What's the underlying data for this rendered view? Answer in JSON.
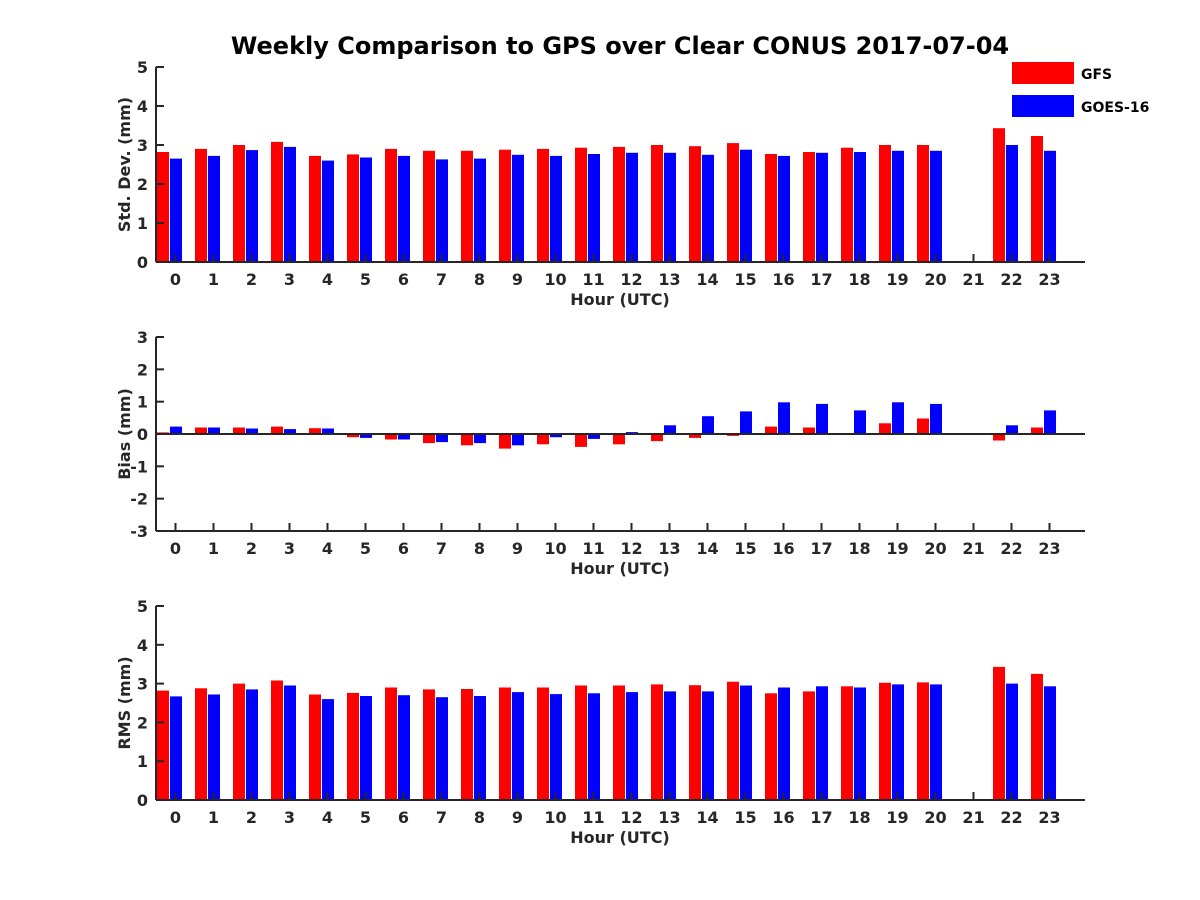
{
  "colors": {
    "gfs": "#ff0000",
    "goes": "#0000ff",
    "axis": "#262626"
  },
  "chart_data": {
    "title": "Weekly Comparison to GPS over Clear CONUS 2017-07-04",
    "legend": {
      "position": "top-right",
      "entries": [
        "GFS",
        "GOES-16"
      ]
    },
    "type": "bar",
    "categories": [
      "0",
      "1",
      "2",
      "3",
      "4",
      "5",
      "6",
      "7",
      "8",
      "9",
      "10",
      "11",
      "12",
      "13",
      "14",
      "15",
      "16",
      "17",
      "18",
      "19",
      "20",
      "21",
      "22",
      "23"
    ],
    "panels": [
      {
        "id": "std",
        "ylabel": "Std. Dev. (mm)",
        "xlabel": "Hour (UTC)",
        "ylim": [
          0,
          5
        ],
        "yticks": [
          "0",
          "1",
          "2",
          "3",
          "4",
          "5"
        ],
        "series": [
          {
            "name": "GFS",
            "values": [
              2.82,
              2.9,
              3.0,
              3.08,
              2.72,
              2.76,
              2.9,
              2.85,
              2.85,
              2.88,
              2.9,
              2.93,
              2.95,
              3.0,
              2.97,
              3.05,
              2.77,
              2.82,
              2.93,
              3.0,
              3.0,
              null,
              3.43,
              3.23
            ]
          },
          {
            "name": "GOES-16",
            "values": [
              2.65,
              2.72,
              2.87,
              2.95,
              2.6,
              2.68,
              2.72,
              2.63,
              2.65,
              2.75,
              2.72,
              2.77,
              2.8,
              2.8,
              2.75,
              2.88,
              2.72,
              2.8,
              2.82,
              2.85,
              2.85,
              null,
              3.0,
              2.85
            ]
          }
        ]
      },
      {
        "id": "bias",
        "ylabel": "Bias (mm)",
        "xlabel": "Hour (UTC)",
        "ylim": [
          -3,
          3
        ],
        "yticks": [
          "-3",
          "-2",
          "-1",
          "0",
          "1",
          "2",
          "3"
        ],
        "series": [
          {
            "name": "GFS",
            "values": [
              0.05,
              0.2,
              0.2,
              0.23,
              0.18,
              -0.1,
              -0.17,
              -0.28,
              -0.35,
              -0.45,
              -0.32,
              -0.4,
              -0.32,
              -0.22,
              -0.12,
              -0.06,
              0.23,
              0.2,
              0.02,
              0.33,
              0.48,
              null,
              -0.2,
              0.2
            ]
          },
          {
            "name": "GOES-16",
            "values": [
              0.23,
              0.2,
              0.17,
              0.15,
              0.17,
              -0.12,
              -0.17,
              -0.25,
              -0.28,
              -0.35,
              -0.1,
              -0.15,
              0.06,
              0.27,
              0.55,
              0.7,
              0.98,
              0.93,
              0.73,
              0.98,
              0.93,
              null,
              0.27,
              0.73
            ]
          }
        ]
      },
      {
        "id": "rms",
        "ylabel": "RMS (mm)",
        "xlabel": "Hour (UTC)",
        "ylim": [
          0,
          5
        ],
        "yticks": [
          "0",
          "1",
          "2",
          "3",
          "4",
          "5"
        ],
        "series": [
          {
            "name": "GFS",
            "values": [
              2.82,
              2.88,
              3.0,
              3.08,
              2.72,
              2.76,
              2.9,
              2.85,
              2.86,
              2.9,
              2.9,
              2.95,
              2.95,
              2.98,
              2.96,
              3.05,
              2.75,
              2.8,
              2.93,
              3.02,
              3.03,
              null,
              3.43,
              3.25
            ]
          },
          {
            "name": "GOES-16",
            "values": [
              2.67,
              2.72,
              2.85,
              2.95,
              2.6,
              2.68,
              2.7,
              2.65,
              2.68,
              2.78,
              2.73,
              2.75,
              2.78,
              2.8,
              2.8,
              2.95,
              2.9,
              2.93,
              2.9,
              2.98,
              2.98,
              null,
              3.0,
              2.93
            ]
          }
        ]
      }
    ]
  }
}
